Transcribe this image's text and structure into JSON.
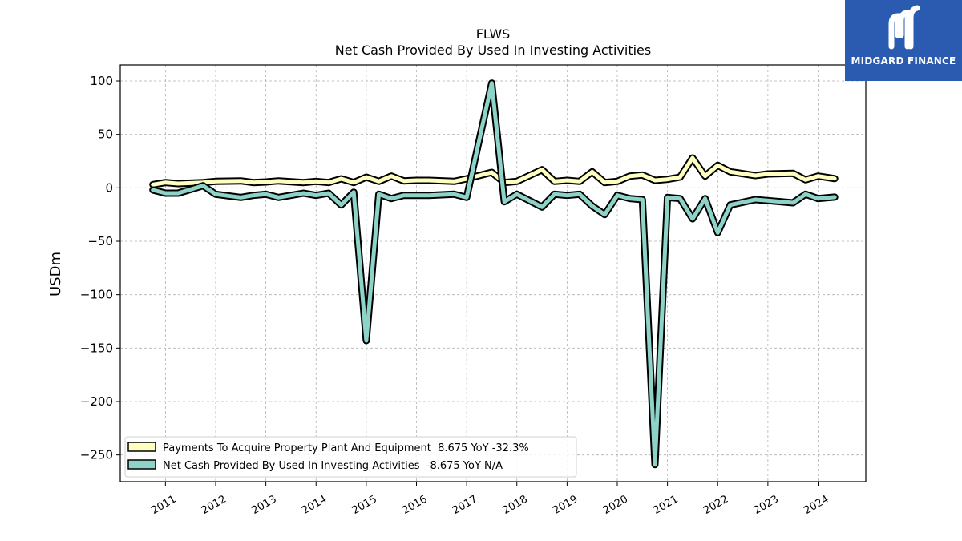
{
  "logo": {
    "text": "MIDGARD FINANCE",
    "bg_color": "#2a5bb0"
  },
  "chart_data": {
    "type": "line",
    "title": "FLWS",
    "subtitle": "Net Cash Provided By Used In Investing Activities",
    "ylabel": "USDm",
    "xlabel": "",
    "ylim": [
      -275,
      115
    ],
    "xlim": [
      2010.1,
      2024.95
    ],
    "yticks": [
      100,
      50,
      0,
      -50,
      -100,
      -150,
      -200,
      -250
    ],
    "ytick_labels": [
      "100",
      "50",
      "0",
      "−50",
      "−100",
      "−150",
      "−200",
      "−250"
    ],
    "xticks": [
      2011,
      2012,
      2013,
      2014,
      2015,
      2016,
      2017,
      2018,
      2019,
      2020,
      2021,
      2022,
      2023,
      2024
    ],
    "xtick_labels": [
      "2011",
      "2012",
      "2013",
      "2014",
      "2015",
      "2016",
      "2017",
      "2018",
      "2019",
      "2020",
      "2021",
      "2022",
      "2023",
      "2024"
    ],
    "grid": true,
    "legend_position": "lower-left",
    "series": [
      {
        "name": "Payments To Acquire Property Plant And Equipment  8.675 YoY -32.3%",
        "color": "#ffffbf",
        "x": [
          2010.75,
          2011.0,
          2011.25,
          2011.75,
          2012.0,
          2012.5,
          2012.75,
          2013.0,
          2013.25,
          2013.75,
          2014.0,
          2014.25,
          2014.5,
          2014.75,
          2015.0,
          2015.25,
          2015.5,
          2015.75,
          2016.0,
          2016.25,
          2016.75,
          2017.0,
          2017.5,
          2017.75,
          2018.0,
          2018.5,
          2018.75,
          2019.0,
          2019.25,
          2019.5,
          2019.75,
          2020.0,
          2020.25,
          2020.5,
          2020.75,
          2021.0,
          2021.25,
          2021.5,
          2021.75,
          2022.0,
          2022.25,
          2022.75,
          2023.0,
          2023.5,
          2023.75,
          2024.0,
          2024.33
        ],
        "values": [
          3,
          5,
          4,
          5,
          6,
          6.5,
          5,
          5.5,
          6.5,
          5,
          6,
          5,
          8.5,
          5,
          10,
          6,
          11,
          6.5,
          7,
          7,
          6,
          8.5,
          14.5,
          5,
          6,
          17,
          6,
          7,
          6,
          15,
          5,
          6,
          11,
          12,
          7,
          8,
          10,
          28,
          11,
          21,
          15,
          11.5,
          13,
          13.5,
          7.5,
          11,
          8.675
        ]
      },
      {
        "name": "Net Cash Provided By Used In Investing Activities  -8.675 YoY N/A",
        "color": "#8dd3c7",
        "x": [
          2010.75,
          2011.0,
          2011.25,
          2011.75,
          2012.0,
          2012.5,
          2012.75,
          2013.0,
          2013.25,
          2013.75,
          2014.0,
          2014.25,
          2014.5,
          2014.75,
          2015.0,
          2015.25,
          2015.5,
          2015.75,
          2016.0,
          2016.25,
          2016.75,
          2017.0,
          2017.5,
          2017.75,
          2018.0,
          2018.5,
          2018.75,
          2019.0,
          2019.25,
          2019.5,
          2019.75,
          2020.0,
          2020.25,
          2020.5,
          2020.75,
          2021.0,
          2021.25,
          2021.5,
          2021.75,
          2022.0,
          2022.25,
          2022.75,
          2023.0,
          2023.5,
          2023.75,
          2024.0,
          2024.33
        ],
        "values": [
          -2,
          -5,
          -5,
          2,
          -6,
          -9,
          -7,
          -6,
          -9,
          -5,
          -7,
          -5,
          -16,
          -4,
          -143,
          -6,
          -10,
          -7,
          -7,
          -7,
          -6,
          -9,
          98,
          -13,
          -6,
          -18,
          -6,
          -7,
          -6,
          -17,
          -25,
          -7,
          -10,
          -11,
          -259,
          -9,
          -10,
          -29,
          -10,
          -42,
          -16,
          -11,
          -12,
          -14,
          -6,
          -10,
          -8.675
        ]
      }
    ]
  }
}
